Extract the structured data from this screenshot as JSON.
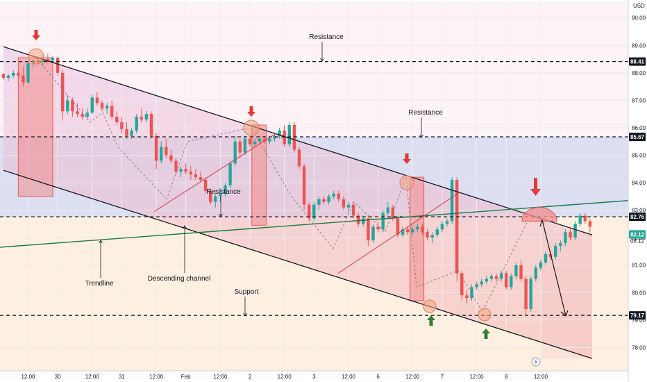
{
  "chart_data": {
    "type": "candlestick",
    "currency": "USD",
    "y_axis": {
      "range": [
        77.2,
        90.6
      ],
      "ticks": [
        78,
        79,
        80,
        81,
        82,
        83,
        84,
        85,
        86,
        87,
        88,
        89,
        90
      ],
      "tick_labels": [
        "78.00",
        "79.00",
        "80.00",
        "81.00",
        "82.00",
        "83.00",
        "84.00",
        "85.00",
        "86.00",
        "87.00",
        "88.00",
        "89.00",
        "90.00"
      ],
      "tagged_levels": [
        {
          "label": "88.41",
          "value": 88.41,
          "color": "#131722"
        },
        {
          "label": "85.67",
          "value": 85.67,
          "color": "#131722"
        },
        {
          "label": "82.76",
          "value": 82.76,
          "color": "#131722"
        },
        {
          "label": "82.12",
          "value": 82.12,
          "color": "#26a69a"
        },
        {
          "label": "79.17",
          "value": 79.17,
          "color": "#131722"
        }
      ],
      "current_time_label": "08:12"
    },
    "x_axis": {
      "labels": [
        "12:00",
        "30",
        "12:00",
        "31",
        "12:00",
        "Feb",
        "12:00",
        "2",
        "12:00",
        "3",
        "12:00",
        "6",
        "12:00",
        "7",
        "12:00",
        "8",
        "12:00"
      ],
      "label_index": [
        5,
        11,
        18,
        24,
        31,
        37,
        44,
        50,
        57,
        63,
        70,
        76,
        83,
        89,
        96,
        102,
        109
      ]
    },
    "horizontal_levels": [
      {
        "name": "Resistance",
        "value": 88.41
      },
      {
        "name": "Resistance",
        "value": 85.67
      },
      {
        "name": "Resistance",
        "value": 82.76
      },
      {
        "name": "Support",
        "value": 79.17
      }
    ],
    "annotations": [
      "Resistance",
      "Resistance",
      "Resistance",
      "Support",
      "Trendline",
      "Descending channel"
    ],
    "colors": {
      "up": "#26a69a",
      "down": "#ef5350",
      "channel_line": "#131722",
      "trendline": "#1b7a45",
      "highlight": "#f4a582"
    },
    "candles": [
      [
        87.95,
        88.0,
        87.75,
        87.82
      ],
      [
        87.82,
        87.95,
        87.7,
        87.9
      ],
      [
        87.9,
        88.1,
        87.8,
        88.0
      ],
      [
        88.0,
        88.05,
        87.85,
        87.9
      ],
      [
        87.9,
        88.2,
        87.5,
        87.65
      ],
      [
        87.65,
        88.45,
        87.6,
        88.35
      ],
      [
        88.35,
        88.55,
        88.2,
        88.45
      ],
      [
        88.45,
        88.6,
        88.3,
        88.4
      ],
      [
        88.4,
        88.65,
        88.3,
        88.5
      ],
      [
        88.5,
        88.7,
        88.35,
        88.45
      ],
      [
        88.45,
        88.6,
        88.35,
        88.55
      ],
      [
        88.55,
        88.58,
        87.9,
        88.0
      ],
      [
        88.0,
        88.1,
        86.3,
        86.6
      ],
      [
        86.6,
        87.2,
        86.5,
        87.0
      ],
      [
        87.0,
        87.1,
        86.4,
        86.6
      ],
      [
        86.6,
        86.9,
        86.4,
        86.5
      ],
      [
        86.5,
        86.7,
        86.3,
        86.4
      ],
      [
        86.4,
        86.7,
        86.3,
        86.55
      ],
      [
        86.55,
        87.2,
        86.5,
        87.1
      ],
      [
        87.1,
        87.3,
        86.8,
        86.9
      ],
      [
        86.9,
        87.0,
        86.6,
        86.7
      ],
      [
        86.7,
        86.9,
        86.5,
        86.8
      ],
      [
        86.8,
        87.0,
        86.3,
        86.4
      ],
      [
        86.4,
        86.6,
        86.1,
        86.2
      ],
      [
        86.2,
        86.4,
        85.8,
        85.95
      ],
      [
        85.95,
        86.2,
        85.6,
        85.7
      ],
      [
        85.7,
        86.0,
        85.6,
        85.9
      ],
      [
        85.9,
        86.5,
        85.8,
        86.4
      ],
      [
        86.4,
        86.7,
        86.2,
        86.3
      ],
      [
        86.3,
        86.6,
        86.2,
        86.5
      ],
      [
        86.5,
        86.6,
        85.6,
        85.7
      ],
      [
        85.7,
        85.8,
        84.5,
        84.8
      ],
      [
        84.8,
        85.5,
        84.7,
        85.3
      ],
      [
        85.3,
        85.6,
        84.9,
        85.0
      ],
      [
        85.0,
        85.2,
        84.7,
        84.8
      ],
      [
        84.8,
        84.9,
        84.3,
        84.4
      ],
      [
        84.4,
        84.6,
        84.2,
        84.5
      ],
      [
        84.5,
        84.7,
        84.3,
        84.4
      ],
      [
        84.4,
        84.6,
        84.1,
        84.3
      ],
      [
        84.3,
        84.5,
        84.1,
        84.2
      ],
      [
        84.2,
        84.4,
        84.0,
        84.1
      ],
      [
        84.1,
        84.2,
        83.6,
        83.7
      ],
      [
        83.7,
        83.8,
        83.2,
        83.3
      ],
      [
        83.3,
        83.6,
        83.1,
        83.5
      ],
      [
        83.5,
        83.8,
        83.3,
        83.6
      ],
      [
        83.6,
        84.0,
        83.5,
        83.9
      ],
      [
        83.9,
        84.8,
        83.8,
        84.7
      ],
      [
        84.7,
        85.7,
        84.6,
        85.5
      ],
      [
        85.5,
        85.6,
        84.9,
        85.1
      ],
      [
        85.1,
        85.7,
        85.0,
        85.6
      ],
      [
        85.6,
        85.7,
        85.3,
        85.4
      ],
      [
        85.4,
        85.6,
        85.3,
        85.5
      ],
      [
        85.5,
        85.7,
        85.4,
        85.6
      ],
      [
        85.6,
        85.7,
        85.4,
        85.5
      ],
      [
        85.5,
        85.7,
        85.4,
        85.6
      ],
      [
        85.6,
        85.8,
        85.5,
        85.7
      ],
      [
        85.7,
        86.0,
        85.6,
        85.9
      ],
      [
        85.9,
        86.1,
        85.3,
        85.4
      ],
      [
        85.4,
        86.2,
        85.3,
        86.1
      ],
      [
        86.1,
        86.2,
        85.1,
        85.2
      ],
      [
        85.2,
        85.3,
        84.5,
        84.6
      ],
      [
        84.6,
        84.7,
        83.0,
        83.2
      ],
      [
        83.2,
        83.3,
        82.6,
        82.7
      ],
      [
        82.7,
        83.3,
        82.6,
        83.2
      ],
      [
        83.2,
        83.5,
        83.0,
        83.4
      ],
      [
        83.4,
        83.5,
        83.2,
        83.3
      ],
      [
        83.3,
        83.6,
        83.2,
        83.5
      ],
      [
        83.5,
        83.7,
        83.4,
        83.6
      ],
      [
        83.6,
        83.7,
        83.3,
        83.4
      ],
      [
        83.4,
        83.5,
        83.0,
        83.1
      ],
      [
        83.1,
        83.3,
        82.9,
        83.2
      ],
      [
        83.2,
        83.3,
        82.7,
        82.8
      ],
      [
        82.8,
        82.9,
        82.4,
        82.5
      ],
      [
        82.5,
        82.8,
        82.4,
        82.7
      ],
      [
        82.7,
        82.8,
        81.7,
        81.9
      ],
      [
        81.9,
        82.5,
        81.8,
        82.4
      ],
      [
        82.4,
        82.6,
        82.2,
        82.3
      ],
      [
        82.3,
        83.0,
        82.2,
        82.9
      ],
      [
        82.9,
        83.3,
        82.8,
        83.1
      ],
      [
        83.1,
        83.2,
        82.6,
        82.7
      ],
      [
        82.7,
        82.8,
        82.0,
        82.1
      ],
      [
        82.1,
        82.4,
        82.0,
        82.3
      ],
      [
        82.3,
        82.4,
        82.1,
        82.2
      ],
      [
        82.2,
        82.4,
        82.1,
        82.3
      ],
      [
        82.3,
        82.5,
        82.2,
        82.4
      ],
      [
        82.4,
        82.5,
        82.1,
        82.2
      ],
      [
        82.2,
        82.3,
        81.9,
        82.0
      ],
      [
        82.0,
        82.2,
        81.8,
        82.1
      ],
      [
        82.1,
        82.4,
        82.0,
        82.3
      ],
      [
        82.3,
        82.6,
        82.2,
        82.5
      ],
      [
        82.5,
        82.7,
        82.4,
        82.6
      ],
      [
        82.6,
        84.2,
        82.5,
        84.1
      ],
      [
        84.1,
        84.2,
        80.4,
        80.7
      ],
      [
        80.7,
        80.8,
        79.7,
        79.9
      ],
      [
        79.9,
        80.1,
        79.6,
        79.8
      ],
      [
        79.8,
        80.3,
        79.7,
        80.2
      ],
      [
        80.2,
        80.4,
        80.1,
        80.3
      ],
      [
        80.3,
        80.5,
        80.2,
        80.4
      ],
      [
        80.4,
        80.6,
        80.3,
        80.5
      ],
      [
        80.5,
        80.7,
        80.4,
        80.6
      ],
      [
        80.6,
        80.7,
        80.4,
        80.5
      ],
      [
        80.5,
        80.8,
        80.4,
        80.7
      ],
      [
        80.7,
        80.8,
        80.1,
        80.2
      ],
      [
        80.2,
        80.7,
        80.1,
        80.6
      ],
      [
        80.6,
        81.1,
        80.5,
        81.0
      ],
      [
        81.0,
        81.2,
        80.4,
        80.5
      ],
      [
        80.5,
        80.6,
        79.2,
        79.4
      ],
      [
        79.4,
        80.6,
        79.3,
        80.5
      ],
      [
        80.5,
        81.0,
        80.4,
        80.9
      ],
      [
        80.9,
        81.2,
        80.8,
        81.1
      ],
      [
        81.1,
        81.5,
        81.0,
        81.4
      ],
      [
        81.4,
        81.5,
        81.2,
        81.3
      ],
      [
        81.3,
        81.8,
        81.2,
        81.7
      ],
      [
        81.7,
        81.9,
        81.5,
        81.8
      ],
      [
        81.8,
        82.3,
        81.7,
        82.2
      ],
      [
        82.2,
        82.3,
        81.9,
        82.0
      ],
      [
        82.0,
        82.6,
        81.9,
        82.5
      ],
      [
        82.5,
        82.9,
        82.4,
        82.8
      ],
      [
        82.8,
        82.9,
        82.5,
        82.6
      ],
      [
        82.6,
        82.7,
        82.2,
        82.4
      ]
    ]
  }
}
